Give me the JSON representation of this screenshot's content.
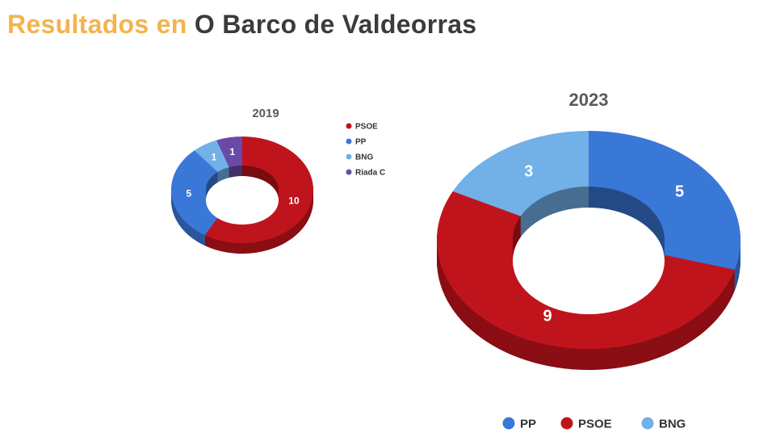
{
  "header": {
    "title_accent": "Resultados en",
    "title_main": "O Barco de Valdeorras"
  },
  "chart_data": [
    {
      "type": "pie",
      "title": "2019",
      "categories": [
        "PSOE",
        "PP",
        "BNG",
        "Riada C"
      ],
      "values": [
        10,
        5,
        1,
        1
      ],
      "colors": [
        "#c0141c",
        "#3a78d8",
        "#72b0e8",
        "#6a4aa8"
      ],
      "legend_placement": "right",
      "legend": [
        "PSOE",
        "PP",
        "BNG",
        "Riada C"
      ]
    },
    {
      "type": "pie",
      "title": "2023",
      "categories": [
        "PP",
        "PSOE",
        "BNG"
      ],
      "values": [
        5,
        9,
        3
      ],
      "colors": [
        "#3a78d8",
        "#c0141c",
        "#72b0e8"
      ],
      "legend_placement": "bottom",
      "legend": [
        "PP",
        "PSOE",
        "BNG"
      ]
    }
  ]
}
